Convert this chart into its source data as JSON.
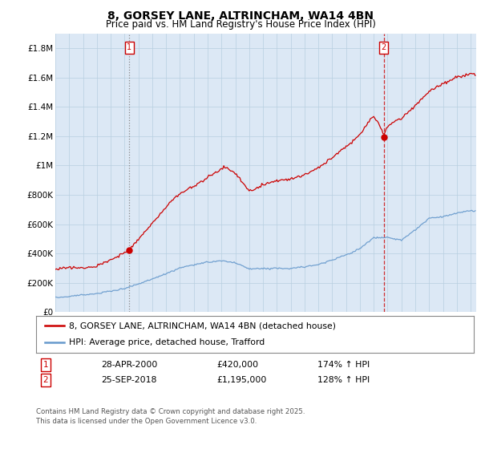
{
  "title": "8, GORSEY LANE, ALTRINCHAM, WA14 4BN",
  "subtitle": "Price paid vs. HM Land Registry's House Price Index (HPI)",
  "legend_line1": "8, GORSEY LANE, ALTRINCHAM, WA14 4BN (detached house)",
  "legend_line2": "HPI: Average price, detached house, Trafford",
  "annotation1_date": "28-APR-2000",
  "annotation1_price": "£420,000",
  "annotation1_hpi": "174% ↑ HPI",
  "annotation2_date": "25-SEP-2018",
  "annotation2_price": "£1,195,000",
  "annotation2_hpi": "128% ↑ HPI",
  "footnote": "Contains HM Land Registry data © Crown copyright and database right 2025.\nThis data is licensed under the Open Government Licence v3.0.",
  "red_color": "#cc0000",
  "blue_color": "#6699cc",
  "plot_bg": "#dce8f5",
  "grid_color": "#b8cfe0",
  "ylim": [
    0,
    1900000
  ],
  "yticks": [
    0,
    200000,
    400000,
    600000,
    800000,
    1000000,
    1200000,
    1400000,
    1600000,
    1800000
  ],
  "ytick_labels": [
    "£0",
    "£200K",
    "£400K",
    "£600K",
    "£800K",
    "£1M",
    "£1.2M",
    "£1.4M",
    "£1.6M",
    "£1.8M"
  ],
  "sale1_year": 2000.33,
  "sale1_value": 420000,
  "sale2_year": 2018.73,
  "sale2_value": 1195000,
  "blue_key_years": [
    1995,
    1996,
    1997,
    1998,
    1999,
    2000,
    2001,
    2002,
    2003,
    2004,
    2005,
    2006,
    2007,
    2008,
    2009,
    2010,
    2011,
    2012,
    2013,
    2014,
    2015,
    2016,
    2017,
    2018,
    2019,
    2020,
    2021,
    2022,
    2023,
    2024,
    2025
  ],
  "blue_key_vals": [
    100000,
    108000,
    118000,
    130000,
    148000,
    165000,
    195000,
    230000,
    270000,
    310000,
    330000,
    348000,
    358000,
    345000,
    305000,
    310000,
    315000,
    315000,
    325000,
    345000,
    375000,
    410000,
    455000,
    530000,
    530000,
    515000,
    580000,
    660000,
    670000,
    690000,
    705000
  ],
  "red_key_years": [
    1995,
    1996,
    1997,
    1998,
    1999,
    2000.33,
    2001,
    2002,
    2003,
    2004,
    2005,
    2006,
    2007.3,
    2008.0,
    2009.0,
    2009.5,
    2010,
    2011,
    2012,
    2013,
    2014,
    2015,
    2016,
    2017,
    2018.0,
    2018.73,
    2019.0,
    2019.5,
    2020,
    2021,
    2022,
    2023,
    2024,
    2025
  ],
  "red_key_vals": [
    290000,
    300000,
    310000,
    320000,
    360000,
    420000,
    490000,
    590000,
    700000,
    790000,
    840000,
    900000,
    970000,
    920000,
    800000,
    810000,
    840000,
    870000,
    880000,
    910000,
    960000,
    1030000,
    1110000,
    1200000,
    1320000,
    1195000,
    1240000,
    1290000,
    1310000,
    1400000,
    1490000,
    1540000,
    1580000,
    1600000
  ]
}
